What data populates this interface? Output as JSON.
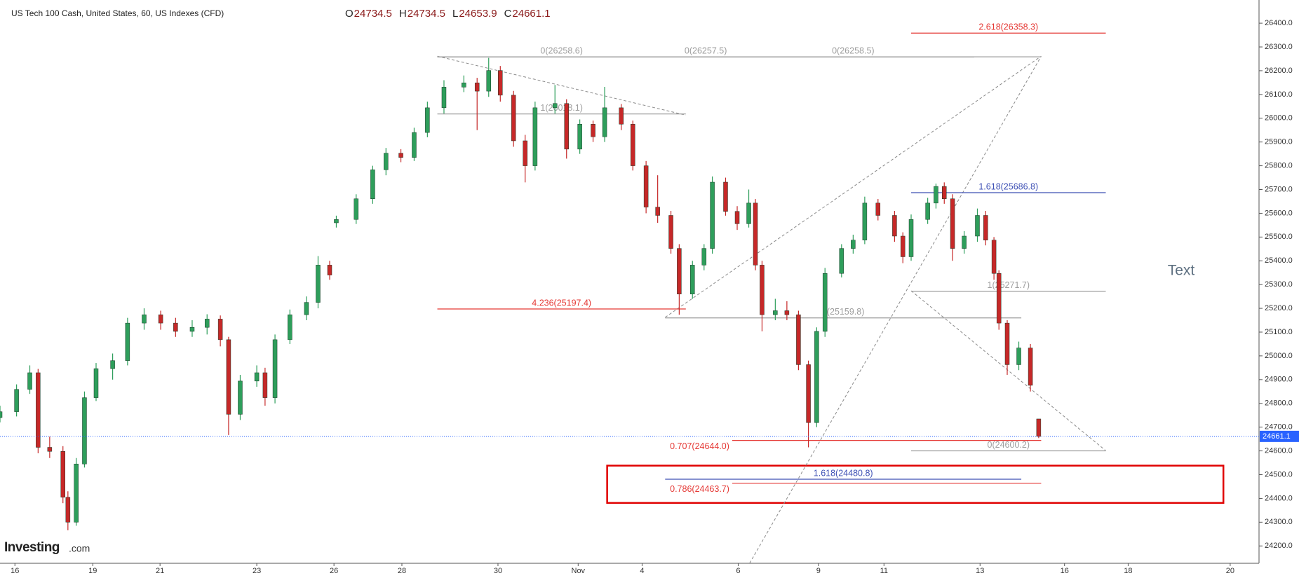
{
  "chart_data": {
    "type": "candlestick",
    "title": "US Tech 100 Cash, United States, 60, US Indexes (CFD)",
    "header_fields": [
      "O",
      "H",
      "L",
      "C"
    ],
    "logo": "Investing",
    "logo_suffix": ".com",
    "xlim": [
      0,
      38
    ],
    "ylim": [
      24127,
      26497.6
    ],
    "grid": false,
    "up_color": "#2e9e5b",
    "down_color": "#c62828",
    "xticks": [
      {
        "value": 0.45,
        "label": "16"
      },
      {
        "value": 2.8,
        "label": "19"
      },
      {
        "value": 4.83,
        "label": "21"
      },
      {
        "value": 7.75,
        "label": "23"
      },
      {
        "value": 10.08,
        "label": "26"
      },
      {
        "value": 12.13,
        "label": "28"
      },
      {
        "value": 15.03,
        "label": "30"
      },
      {
        "value": 17.45,
        "label": "Nov"
      },
      {
        "value": 19.38,
        "label": "4"
      },
      {
        "value": 22.28,
        "label": "6"
      },
      {
        "value": 24.7,
        "label": "9"
      },
      {
        "value": 26.68,
        "label": "11"
      },
      {
        "value": 29.58,
        "label": "13"
      },
      {
        "value": 32.13,
        "label": "16"
      },
      {
        "value": 34.05,
        "label": "18"
      },
      {
        "value": 37.13,
        "label": "20"
      }
    ],
    "yticks": [
      {
        "value": 24200,
        "label": "24200.0"
      },
      {
        "value": 24300,
        "label": "24300.0"
      },
      {
        "value": 24400,
        "label": "24400.0"
      },
      {
        "value": 24500,
        "label": "24500.0"
      },
      {
        "value": 24600,
        "label": "24600.0"
      },
      {
        "value": 24700,
        "label": "24700.0"
      },
      {
        "value": 24800,
        "label": "24800.0"
      },
      {
        "value": 24900,
        "label": "24900.0"
      },
      {
        "value": 25000,
        "label": "25000.0"
      },
      {
        "value": 25100,
        "label": "25100.0"
      },
      {
        "value": 25200,
        "label": "25200.0"
      },
      {
        "value": 25300,
        "label": "25300.0"
      },
      {
        "value": 25400,
        "label": "25400.0"
      },
      {
        "value": 25500,
        "label": "25500.0"
      },
      {
        "value": 25600,
        "label": "25600.0"
      },
      {
        "value": 25700,
        "label": "25700.0"
      },
      {
        "value": 25800,
        "label": "25800.0"
      },
      {
        "value": 25900,
        "label": "25900.0"
      },
      {
        "value": 26000,
        "label": "26000.0"
      },
      {
        "value": 26100,
        "label": "26100.0"
      },
      {
        "value": 26200,
        "label": "26200.0"
      },
      {
        "value": 26300,
        "label": "26300.0"
      },
      {
        "value": 26400,
        "label": "26400.0"
      }
    ],
    "series": [
      {
        "x": [
          0.0,
          0.5,
          0.9,
          1.15,
          1.5,
          1.9,
          2.05,
          2.3,
          2.55,
          2.9,
          3.4,
          3.85,
          4.35,
          4.85,
          5.3,
          5.8,
          6.25,
          6.65,
          6.9,
          7.25,
          7.75,
          8.0,
          8.3,
          8.75,
          9.25,
          9.6,
          9.95,
          10.15,
          10.75,
          11.25,
          11.65,
          12.1,
          12.5,
          12.9,
          13.4,
          14.0,
          14.4,
          14.75,
          15.1,
          15.5,
          15.85,
          16.15,
          16.75,
          17.1,
          17.5,
          17.9,
          18.25,
          18.75,
          19.1,
          19.5,
          19.85,
          20.25,
          20.5,
          20.9,
          21.25,
          21.5,
          21.9,
          22.25,
          22.6,
          22.8,
          23.0,
          23.4,
          23.75,
          24.1,
          24.4,
          24.65,
          24.9,
          25.4,
          25.75,
          26.1,
          26.5,
          27.0,
          27.25,
          27.5,
          28.0,
          28.25,
          28.5,
          28.75,
          29.1,
          29.5,
          29.75,
          30.0,
          30.15,
          30.4,
          30.75,
          31.1,
          31.35
        ],
        "ohlc": [
          [
            24740,
            24790,
            24720,
            24765
          ],
          [
            24765,
            24880,
            24745,
            24859
          ],
          [
            24859,
            24960,
            24840,
            24929
          ],
          [
            24929,
            24945,
            24590,
            24615
          ],
          [
            24615,
            24660,
            24570,
            24598
          ],
          [
            24598,
            24620,
            24380,
            24405
          ],
          [
            24405,
            24430,
            24266,
            24300
          ],
          [
            24300,
            24570,
            24285,
            24545
          ],
          [
            24545,
            24850,
            24530,
            24824
          ],
          [
            24824,
            24970,
            24810,
            24946
          ],
          [
            24946,
            25010,
            24900,
            24980
          ],
          [
            24980,
            25160,
            24960,
            25138
          ],
          [
            25138,
            25200,
            25110,
            25173
          ],
          [
            25173,
            25190,
            25110,
            25138
          ],
          [
            25138,
            25160,
            25080,
            25103
          ],
          [
            25103,
            25150,
            25080,
            25120
          ],
          [
            25120,
            25175,
            25090,
            25155
          ],
          [
            25155,
            25170,
            25040,
            25068
          ],
          [
            25068,
            25080,
            24667,
            24754
          ],
          [
            24754,
            24920,
            24730,
            24894
          ],
          [
            24894,
            24960,
            24870,
            24929
          ],
          [
            24929,
            24950,
            24790,
            24824
          ],
          [
            24824,
            25090,
            24800,
            25068
          ],
          [
            25068,
            25195,
            25050,
            25173
          ],
          [
            25173,
            25250,
            25150,
            25225
          ],
          [
            25225,
            25420,
            25200,
            25382
          ],
          [
            25382,
            25400,
            25320,
            25340
          ],
          [
            25560,
            25590,
            25540,
            25574
          ],
          [
            25574,
            25680,
            25555,
            25661
          ],
          [
            25661,
            25800,
            25640,
            25783
          ],
          [
            25783,
            25875,
            25760,
            25853
          ],
          [
            25853,
            25870,
            25815,
            25835
          ],
          [
            25835,
            25960,
            25820,
            25940
          ],
          [
            25940,
            26070,
            25920,
            26044
          ],
          [
            26044,
            26160,
            26020,
            26131
          ],
          [
            26131,
            26180,
            26110,
            26149
          ],
          [
            26149,
            26170,
            25950,
            26114
          ],
          [
            26114,
            26254,
            26090,
            26201
          ],
          [
            26201,
            26220,
            26070,
            26097
          ],
          [
            26097,
            26115,
            25880,
            25905
          ],
          [
            25905,
            25930,
            25730,
            25800
          ],
          [
            25800,
            26070,
            25780,
            26044
          ],
          [
            26044,
            26140,
            26020,
            26062
          ],
          [
            26062,
            26080,
            25830,
            25870
          ],
          [
            25870,
            25995,
            25850,
            25975
          ],
          [
            25975,
            25990,
            25900,
            25922
          ],
          [
            25922,
            26132,
            25900,
            26044
          ],
          [
            26044,
            26060,
            25950,
            25975
          ],
          [
            25975,
            25990,
            25780,
            25800
          ],
          [
            25800,
            25820,
            25600,
            25626
          ],
          [
            25626,
            25760,
            25560,
            25591
          ],
          [
            25591,
            25610,
            25430,
            25452
          ],
          [
            25452,
            25470,
            25173,
            25260
          ],
          [
            25260,
            25400,
            25240,
            25382
          ],
          [
            25382,
            25470,
            25360,
            25452
          ],
          [
            25452,
            25755,
            25430,
            25731
          ],
          [
            25731,
            25750,
            25590,
            25608
          ],
          [
            25608,
            25630,
            25530,
            25556
          ],
          [
            25556,
            25700,
            25540,
            25643
          ],
          [
            25643,
            25660,
            25360,
            25382
          ],
          [
            25382,
            25400,
            25103,
            25173
          ],
          [
            25173,
            25240,
            25150,
            25190
          ],
          [
            25190,
            25230,
            25150,
            25173
          ],
          [
            25173,
            25190,
            24940,
            24963
          ],
          [
            24963,
            24980,
            24615,
            24719
          ],
          [
            24719,
            25120,
            24700,
            25103
          ],
          [
            25103,
            25370,
            25080,
            25347
          ],
          [
            25347,
            25470,
            25330,
            25452
          ],
          [
            25452,
            25510,
            25430,
            25487
          ],
          [
            25487,
            25670,
            25470,
            25643
          ],
          [
            25643,
            25660,
            25570,
            25591
          ],
          [
            25591,
            25610,
            25480,
            25504
          ],
          [
            25504,
            25520,
            25390,
            25417
          ],
          [
            25417,
            25595,
            25400,
            25574
          ],
          [
            25574,
            25665,
            25555,
            25643
          ],
          [
            25643,
            25725,
            25620,
            25713
          ],
          [
            25713,
            25730,
            25640,
            25661
          ],
          [
            25661,
            25680,
            25400,
            25452
          ],
          [
            25452,
            25525,
            25430,
            25504
          ],
          [
            25504,
            25620,
            25480,
            25591
          ],
          [
            25591,
            25610,
            25465,
            25487
          ],
          [
            25487,
            25500,
            25320,
            25347
          ],
          [
            25347,
            25360,
            25110,
            25138
          ],
          [
            25138,
            25150,
            24920,
            24963
          ],
          [
            24963,
            25060,
            24940,
            25033
          ],
          [
            25033,
            25050,
            24850,
            24876
          ],
          [
            24734.5,
            24734.5,
            24653.9,
            24661.1
          ]
        ]
      }
    ],
    "levels": [
      {
        "x": [
          27.5,
          33.375
        ],
        "level": 26358.3,
        "label": "2.618(26358.3)",
        "color": "#e53935"
      },
      {
        "x": [
          13.2,
          20.7
        ],
        "level": 26258.6,
        "label": "0(26258.6)",
        "color": "#9e9e9e"
      },
      {
        "x": [
          13.2,
          29.4
        ],
        "level": 26257.5,
        "label": "0(26257.5)",
        "color": "#9e9e9e"
      },
      {
        "x": [
          20.075,
          31.425
        ],
        "level": 26258.5,
        "label": "0(26258.5)",
        "color": "#9e9e9e"
      },
      {
        "x": [
          13.2,
          20.7
        ],
        "level": 26018.1,
        "label": "1(26018.1)",
        "color": "#9e9e9e"
      },
      {
        "x": [
          27.5,
          33.375
        ],
        "level": 25686.8,
        "label": "1.618(25686.8)",
        "color": "#3f51b5"
      },
      {
        "x": [
          27.5,
          33.375
        ],
        "level": 25271.7,
        "label": "1(25271.7)",
        "color": "#9e9e9e"
      },
      {
        "x": [
          13.2,
          20.7
        ],
        "level": 25197.4,
        "label": "4.236(25197.4)",
        "color": "#e53935"
      },
      {
        "x": [
          20.075,
          30.825
        ],
        "level": 25159.8,
        "label": "1(25159.8)",
        "color": "#9e9e9e"
      },
      {
        "x": [
          22.1,
          31.425
        ],
        "level": 24644.0,
        "label": "0.707(24644.0)",
        "color": "#e53935",
        "label_side": "start"
      },
      {
        "x": [
          27.5,
          33.375
        ],
        "level": 24600.2,
        "label": "0(24600.2)",
        "color": "#9e9e9e"
      },
      {
        "x": [
          20.075,
          30.825
        ],
        "level": 24480.8,
        "label": "1.618(24480.8)",
        "color": "#3f51b5"
      },
      {
        "x": [
          22.1,
          31.425
        ],
        "level": 24463.7,
        "label": "0.786(24463.7)",
        "color": "#e53935",
        "label_side": "start"
      }
    ],
    "trendlines": [
      {
        "x": [
          13.2,
          20.7
        ],
        "y": [
          26261,
          26013
        ]
      },
      {
        "x": [
          20.075,
          31.425
        ],
        "y": [
          25162,
          26261
        ]
      },
      {
        "x": [
          22.625,
          31.425
        ],
        "y": [
          24127,
          26261
        ]
      },
      {
        "x": [
          27.5,
          33.375
        ],
        "y": [
          25274,
          24601
        ]
      }
    ],
    "box": {
      "x": [
        18.325,
        36.925
      ],
      "y": [
        24538,
        24381
      ],
      "color": "#e00000"
    },
    "annotations": [
      {
        "x": 35.65,
        "y": 25357,
        "text": "Text"
      }
    ],
    "last_price_color": "#2962ff"
  }
}
